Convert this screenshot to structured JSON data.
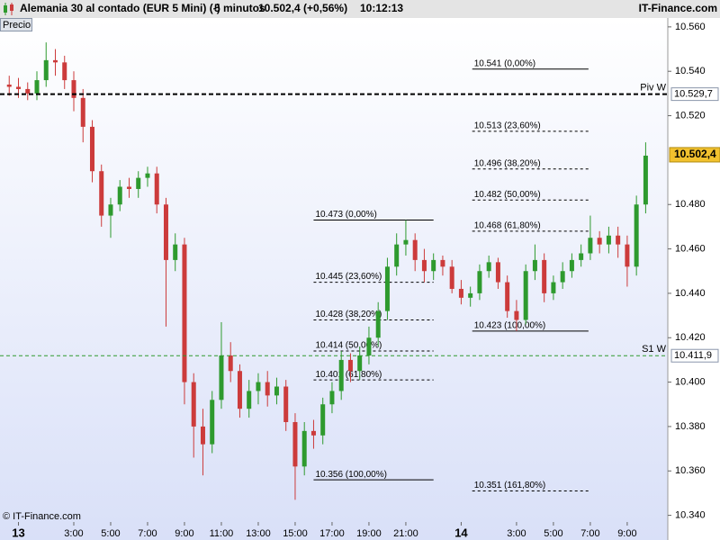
{
  "header": {
    "title": "Alemania 30 al contado (EUR 5 Mini) (-)",
    "interval": "5 minutos",
    "price": "10.502,4 (+0,56%)",
    "time": "10:12:13",
    "brand": "IT-Finance.com"
  },
  "button": "Precio",
  "footer": "© IT-Finance.com",
  "chart_data": {
    "type": "candlestick",
    "x": [
      -0.5,
      0,
      0.5,
      1,
      1.5,
      2,
      2.5,
      3,
      3.5,
      4,
      4.5,
      5,
      5.5,
      6,
      6.5,
      7,
      7.5,
      8,
      8.5,
      9,
      9.5,
      10,
      10.5,
      11,
      11.5,
      12,
      12.5,
      13,
      13.5,
      14,
      14.5,
      15,
      15.5,
      16,
      16.5,
      17,
      17.5,
      18,
      18.5,
      19,
      19.5,
      20,
      20.5,
      21,
      21.5,
      22,
      22.5,
      23,
      23.5,
      24,
      24.5,
      25,
      25.5,
      26,
      26.5,
      27,
      27.5,
      28,
      28.5,
      29,
      29.5,
      30,
      30.5,
      31,
      31.5,
      32,
      32.5,
      33,
      33.5,
      34
    ],
    "open": [
      10.534,
      10.533,
      10.532,
      10.53,
      10.536,
      10.545,
      10.544,
      10.536,
      10.528,
      10.515,
      10.495,
      10.475,
      10.48,
      10.488,
      10.487,
      10.492,
      10.494,
      10.48,
      10.455,
      10.462,
      10.4,
      10.38,
      10.372,
      10.392,
      10.412,
      10.405,
      10.388,
      10.396,
      10.4,
      10.394,
      10.398,
      10.382,
      10.362,
      10.378,
      10.376,
      10.39,
      10.396,
      10.41,
      10.405,
      10.412,
      10.42,
      10.432,
      10.452,
      10.462,
      10.464,
      10.455,
      10.45,
      10.455,
      10.452,
      10.442,
      10.438,
      10.44,
      10.45,
      10.454,
      10.445,
      10.432,
      10.428,
      10.45,
      10.455,
      10.44,
      10.445,
      10.45,
      10.455,
      10.458,
      10.465,
      10.462,
      10.466,
      10.462,
      10.452,
      10.48
    ],
    "high": [
      10.538,
      10.537,
      10.535,
      10.54,
      10.553,
      10.55,
      10.547,
      10.54,
      10.532,
      10.518,
      10.498,
      10.483,
      10.491,
      10.492,
      10.495,
      10.497,
      10.497,
      10.483,
      10.467,
      10.465,
      10.404,
      10.388,
      10.396,
      10.427,
      10.418,
      10.408,
      10.401,
      10.404,
      10.405,
      10.402,
      10.401,
      10.386,
      10.382,
      10.383,
      10.393,
      10.4,
      10.414,
      10.413,
      10.416,
      10.425,
      10.436,
      10.456,
      10.467,
      10.473,
      10.467,
      10.46,
      10.458,
      10.457,
      10.455,
      10.446,
      10.443,
      10.453,
      10.457,
      10.456,
      10.448,
      10.437,
      10.453,
      10.462,
      10.458,
      10.448,
      10.454,
      10.458,
      10.462,
      10.475,
      10.468,
      10.47,
      10.47,
      10.466,
      10.484,
      10.508
    ],
    "low": [
      10.529,
      10.528,
      10.527,
      10.527,
      10.533,
      10.538,
      10.532,
      10.522,
      10.508,
      10.49,
      10.47,
      10.465,
      10.477,
      10.483,
      10.483,
      10.488,
      10.476,
      10.425,
      10.45,
      10.39,
      10.366,
      10.358,
      10.368,
      10.388,
      10.4,
      10.384,
      10.384,
      10.39,
      10.389,
      10.39,
      10.378,
      10.347,
      10.358,
      10.37,
      10.372,
      10.386,
      10.392,
      10.4,
      10.401,
      10.408,
      10.416,
      10.428,
      10.448,
      10.457,
      10.45,
      10.445,
      10.446,
      10.448,
      10.44,
      10.435,
      10.434,
      10.437,
      10.447,
      10.442,
      10.429,
      10.423,
      10.426,
      10.446,
      10.436,
      10.437,
      10.442,
      10.447,
      10.452,
      10.455,
      10.458,
      10.458,
      10.456,
      10.443,
      10.448,
      10.476
    ],
    "close": [
      10.533,
      10.532,
      10.53,
      10.536,
      10.545,
      10.544,
      10.536,
      10.528,
      10.515,
      10.495,
      10.475,
      10.48,
      10.488,
      10.487,
      10.492,
      10.494,
      10.48,
      10.455,
      10.462,
      10.4,
      10.38,
      10.372,
      10.392,
      10.412,
      10.405,
      10.388,
      10.396,
      10.4,
      10.394,
      10.398,
      10.382,
      10.362,
      10.378,
      10.376,
      10.39,
      10.396,
      10.41,
      10.405,
      10.412,
      10.42,
      10.432,
      10.452,
      10.462,
      10.464,
      10.455,
      10.45,
      10.455,
      10.452,
      10.442,
      10.438,
      10.44,
      10.45,
      10.454,
      10.445,
      10.432,
      10.428,
      10.45,
      10.455,
      10.44,
      10.445,
      10.45,
      10.455,
      10.458,
      10.465,
      10.462,
      10.466,
      10.462,
      10.452,
      10.48,
      10.502
    ],
    "up_color": "#2e9a2e",
    "down_color": "#cc3b3b",
    "xlim": [
      -1,
      35.2
    ],
    "ylim": [
      10.337,
      10.564
    ],
    "xticks": [
      {
        "value": 0,
        "label": "13"
      },
      {
        "value": 3,
        "label": "3:00"
      },
      {
        "value": 5,
        "label": "5:00"
      },
      {
        "value": 7,
        "label": "7:00"
      },
      {
        "value": 9,
        "label": "9:00"
      },
      {
        "value": 11,
        "label": "11:00"
      },
      {
        "value": 13,
        "label": "13:00"
      },
      {
        "value": 15,
        "label": "15:00"
      },
      {
        "value": 17,
        "label": "17:00"
      },
      {
        "value": 19,
        "label": "19:00"
      },
      {
        "value": 21,
        "label": "21:00"
      },
      {
        "value": 24,
        "label": "14"
      },
      {
        "value": 27,
        "label": "3:00"
      },
      {
        "value": 29,
        "label": "5:00"
      },
      {
        "value": 31,
        "label": "7:00"
      },
      {
        "value": 33,
        "label": "9:00"
      }
    ],
    "yticks": [
      {
        "value": 10.34,
        "label": "10.340"
      },
      {
        "value": 10.36,
        "label": "10.360"
      },
      {
        "value": 10.38,
        "label": "10.380"
      },
      {
        "value": 10.4,
        "label": "10.400"
      },
      {
        "value": 10.42,
        "label": "10.420"
      },
      {
        "value": 10.44,
        "label": "10.440"
      },
      {
        "value": 10.46,
        "label": "10.460"
      },
      {
        "value": 10.48,
        "label": "10.480"
      },
      {
        "value": 10.52,
        "label": "10.520"
      },
      {
        "value": 10.54,
        "label": "10.540"
      },
      {
        "value": 10.56,
        "label": "10.560"
      }
    ],
    "levels": [
      {
        "name": "Piv W",
        "value": 10.5297,
        "label": "10.529,7",
        "color": "#000000"
      },
      {
        "name": "S1 W",
        "value": 10.4119,
        "label": "10.411,9",
        "color": "#2e9a2e"
      }
    ],
    "last_price": {
      "value": 10.5024,
      "label": "10.502,4",
      "color": "#f2c12e"
    },
    "fibonacci": [
      {
        "xlim": [
          16,
          22.5
        ],
        "levels": [
          {
            "value": 10.473,
            "label": "10.473 (0,00%)",
            "style": "solid"
          },
          {
            "value": 10.445,
            "label": "10.445 (23,60%)",
            "style": "dashed"
          },
          {
            "value": 10.428,
            "label": "10.428 (38,20%)",
            "style": "dashed"
          },
          {
            "value": 10.414,
            "label": "10.414 (50,00%)",
            "style": "dashed"
          },
          {
            "value": 10.401,
            "label": "10.401 (61,80%)",
            "style": "dashed"
          },
          {
            "value": 10.356,
            "label": "10.356 (100,00%)",
            "style": "solid"
          }
        ]
      },
      {
        "xlim": [
          24.6,
          30.9
        ],
        "levels": [
          {
            "value": 10.541,
            "label": "10.541 (0,00%)",
            "style": "solid"
          },
          {
            "value": 10.513,
            "label": "10.513 (23,60%)",
            "style": "dashed"
          },
          {
            "value": 10.496,
            "label": "10.496 (38,20%)",
            "style": "dashed"
          },
          {
            "value": 10.482,
            "label": "10.482 (50,00%)",
            "style": "dashed"
          },
          {
            "value": 10.468,
            "label": "10.468 (61,80%)",
            "style": "dashed"
          },
          {
            "value": 10.423,
            "label": "10.423 (100,00%)",
            "style": "solid"
          },
          {
            "value": 10.351,
            "label": "10.351 (161,80%)",
            "style": "dashed"
          }
        ]
      }
    ]
  }
}
